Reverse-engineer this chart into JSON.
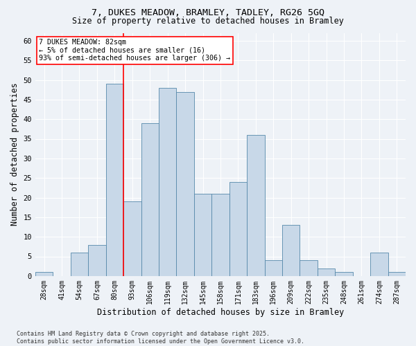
{
  "title": "7, DUKES MEADOW, BRAMLEY, TADLEY, RG26 5GQ",
  "subtitle": "Size of property relative to detached houses in Bramley",
  "xlabel": "Distribution of detached houses by size in Bramley",
  "ylabel": "Number of detached properties",
  "bar_color": "#c8d8e8",
  "bar_edge_color": "#5588aa",
  "background_color": "#eef2f7",
  "grid_color": "#ffffff",
  "categories": [
    "28sqm",
    "41sqm",
    "54sqm",
    "67sqm",
    "80sqm",
    "93sqm",
    "106sqm",
    "119sqm",
    "132sqm",
    "145sqm",
    "158sqm",
    "171sqm",
    "183sqm",
    "196sqm",
    "209sqm",
    "222sqm",
    "235sqm",
    "248sqm",
    "261sqm",
    "274sqm",
    "287sqm"
  ],
  "values": [
    1,
    0,
    6,
    8,
    49,
    19,
    39,
    48,
    47,
    21,
    21,
    24,
    36,
    4,
    13,
    4,
    2,
    1,
    0,
    6,
    1
  ],
  "ylim": [
    0,
    62
  ],
  "yticks": [
    0,
    5,
    10,
    15,
    20,
    25,
    30,
    35,
    40,
    45,
    50,
    55,
    60
  ],
  "vline_bar_index": 4,
  "annotation_line1": "7 DUKES MEADOW: 82sqm",
  "annotation_line2": "← 5% of detached houses are smaller (16)",
  "annotation_line3": "93% of semi-detached houses are larger (306) →",
  "footnote1": "Contains HM Land Registry data © Crown copyright and database right 2025.",
  "footnote2": "Contains public sector information licensed under the Open Government Licence v3.0."
}
